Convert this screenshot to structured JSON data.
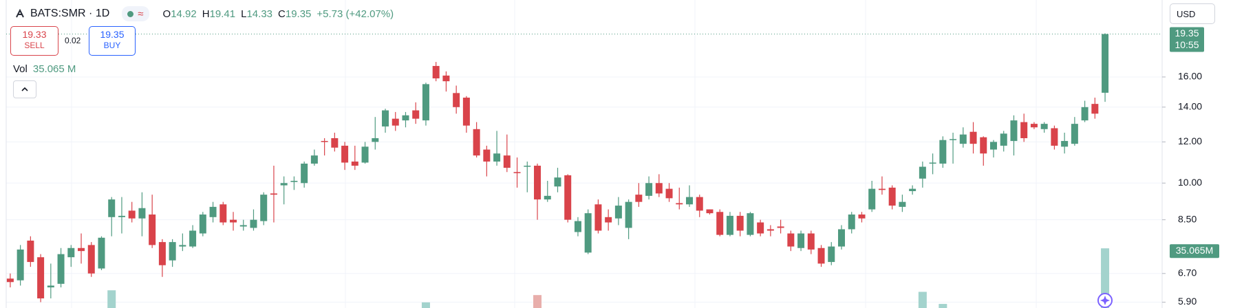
{
  "header": {
    "symbol": "BATS:SMR · 1D",
    "ohlc": [
      {
        "label": "O",
        "value": "14.92"
      },
      {
        "label": "H",
        "value": "19.41"
      },
      {
        "label": "L",
        "value": "14.33"
      },
      {
        "label": "C",
        "value": "19.35"
      }
    ],
    "change": "+5.73 (+42.07%)",
    "currency": "USD"
  },
  "trade": {
    "sell_price": "19.33",
    "sell": "SELL",
    "spread": "0.02",
    "buy_price": "19.35",
    "buy": "BUY"
  },
  "volume_legend": {
    "label": "Vol",
    "value": "35.065 M"
  },
  "chart_data": {
    "type": "candlestick",
    "open": [
      6.55,
      6.5,
      7.75,
      7.2,
      6.3,
      6.4,
      7.2,
      7.5,
      7.6,
      6.85,
      8.6,
      8.6,
      8.85,
      8.55,
      8.7,
      7.7,
      7.1,
      7.55,
      7.55,
      8.0,
      8.6,
      9.1,
      8.5,
      8.25,
      8.2,
      8.45,
      9.55,
      9.9,
      10.05,
      10.0,
      10.9,
      12.05,
      12.2,
      11.8,
      11.0,
      10.95,
      12.0,
      12.85,
      13.3,
      13.2,
      13.8,
      13.2,
      16.8,
      16.1,
      14.9,
      14.6,
      12.7,
      11.6,
      11.0,
      11.3,
      10.5,
      10.75,
      10.8,
      9.3,
      9.85,
      10.35,
      8.05,
      7.35,
      9.1,
      8.6,
      8.55,
      8.2,
      9.5,
      9.45,
      10.0,
      9.75,
      9.15,
      9.1,
      9.4,
      8.9,
      8.8,
      7.95,
      8.65,
      7.95,
      8.4,
      8.15,
      8.25,
      8.0,
      7.5,
      8.0,
      7.5,
      7.05,
      7.55,
      8.15,
      8.7,
      8.9,
      9.75,
      9.8,
      9.0,
      9.65,
      10.2,
      10.9,
      10.9,
      12.1,
      11.9,
      12.55,
      12.25,
      11.6,
      11.8,
      12.05,
      13.1,
      13.0,
      12.7,
      12.75,
      11.75,
      11.9,
      13.2,
      14.2,
      14.92
    ],
    "high": [
      6.7,
      7.6,
      7.9,
      7.3,
      7.0,
      7.5,
      7.6,
      8.0,
      7.7,
      7.9,
      9.4,
      9.4,
      9.2,
      9.6,
      9.5,
      7.8,
      7.8,
      8.0,
      8.3,
      8.8,
      9.2,
      9.2,
      8.8,
      8.5,
      8.9,
      9.6,
      10.8,
      10.3,
      10.3,
      11.0,
      11.6,
      12.2,
      12.5,
      12.0,
      11.8,
      12.0,
      13.4,
      13.9,
      13.7,
      13.7,
      14.3,
      15.6,
      17.1,
      16.4,
      15.4,
      14.7,
      13.1,
      11.8,
      12.6,
      12.4,
      11.2,
      11.0,
      10.9,
      10.1,
      10.7,
      10.4,
      8.6,
      8.9,
      9.3,
      8.9,
      9.4,
      9.3,
      10.0,
      10.3,
      10.4,
      10.0,
      9.8,
      9.9,
      9.5,
      8.9,
      8.9,
      8.8,
      8.8,
      8.8,
      8.5,
      8.3,
      8.5,
      8.1,
      8.1,
      8.1,
      7.6,
      7.7,
      8.3,
      8.8,
      8.8,
      10.1,
      10.3,
      9.9,
      9.5,
      9.9,
      11.0,
      11.4,
      12.3,
      12.5,
      12.8,
      13.1,
      12.3,
      12.1,
      12.6,
      13.5,
      13.6,
      13.1,
      13.1,
      12.9,
      12.5,
      13.4,
      14.4,
      14.6,
      19.41
    ],
    "low": [
      6.3,
      6.35,
      6.9,
      5.9,
      6.0,
      6.3,
      6.9,
      7.0,
      6.6,
      6.8,
      7.9,
      8.0,
      8.4,
      7.9,
      7.5,
      6.6,
      6.9,
      7.4,
      7.5,
      7.9,
      8.4,
      8.3,
      8.1,
      8.1,
      8.1,
      8.3,
      8.4,
      9.1,
      9.7,
      9.8,
      10.8,
      11.3,
      11.5,
      10.6,
      10.6,
      10.9,
      11.6,
      12.5,
      12.6,
      12.8,
      13.0,
      12.9,
      15.7,
      15.0,
      13.6,
      12.5,
      11.2,
      10.3,
      10.8,
      10.5,
      9.8,
      9.6,
      8.5,
      9.2,
      9.6,
      8.4,
      7.9,
      7.3,
      8.0,
      8.1,
      8.3,
      7.8,
      9.0,
      9.3,
      9.4,
      9.2,
      8.9,
      9.0,
      8.6,
      8.7,
      7.9,
      7.9,
      7.9,
      7.9,
      7.9,
      7.9,
      8.0,
      7.4,
      7.4,
      7.3,
      6.9,
      6.95,
      7.45,
      8.0,
      8.4,
      8.8,
      9.5,
      8.9,
      8.8,
      9.5,
      9.8,
      10.4,
      10.7,
      10.9,
      11.7,
      11.4,
      10.8,
      11.2,
      11.5,
      11.3,
      12.0,
      12.7,
      12.5,
      11.6,
      11.4,
      11.8,
      13.1,
      13.3,
      14.33
    ],
    "close": [
      6.45,
      7.45,
      7.05,
      6.0,
      6.35,
      7.3,
      7.5,
      7.4,
      6.7,
      7.85,
      9.3,
      8.65,
      8.55,
      8.95,
      7.6,
      6.95,
      7.7,
      7.6,
      8.1,
      8.7,
      9.0,
      8.4,
      8.4,
      8.3,
      8.5,
      9.5,
      9.5,
      10.0,
      10.1,
      10.9,
      11.3,
      12.0,
      11.7,
      10.95,
      10.8,
      11.75,
      12.2,
      13.8,
      12.9,
      13.5,
      13.3,
      15.5,
      15.9,
      15.7,
      14.0,
      12.9,
      11.3,
      11.0,
      11.4,
      10.7,
      10.45,
      10.8,
      9.3,
      9.45,
      10.25,
      8.5,
      8.45,
      8.75,
      8.1,
      8.4,
      9.05,
      9.2,
      9.2,
      10.0,
      9.55,
      9.35,
      9.1,
      9.4,
      8.85,
      8.75,
      7.95,
      8.65,
      8.1,
      8.75,
      8.0,
      8.1,
      8.2,
      7.55,
      8.0,
      7.45,
      7.0,
      7.55,
      8.15,
      8.7,
      8.55,
      9.75,
      9.7,
      9.05,
      9.2,
      9.75,
      10.75,
      10.95,
      12.1,
      12.15,
      12.4,
      11.9,
      11.4,
      12.0,
      12.45,
      13.2,
      12.2,
      12.8,
      13.0,
      11.8,
      12.05,
      13.0,
      14.0,
      13.6,
      19.35
    ],
    "up_color": "#4f9a80",
    "down_color": "#d9434a",
    "ylim": [
      5.75,
      22.5
    ],
    "log": true,
    "grid": true,
    "yticks": [
      {
        "value": 5.9,
        "label": "5.90"
      },
      {
        "value": 6.7,
        "label": "6.70"
      },
      {
        "value": 8.5,
        "label": "8.50"
      },
      {
        "value": 10,
        "label": "10.00"
      },
      {
        "value": 12,
        "label": "12.00"
      },
      {
        "value": 14,
        "label": "14.00"
      },
      {
        "value": 16,
        "label": "16.00"
      }
    ],
    "last_price_label": "19.35",
    "countdown": "10:55",
    "volume": {
      "values": [
        null,
        null,
        null,
        null,
        null,
        null,
        null,
        null,
        null,
        null,
        10.4,
        null,
        null,
        null,
        null,
        null,
        null,
        null,
        null,
        null,
        null,
        null,
        null,
        null,
        null,
        null,
        null,
        null,
        null,
        null,
        null,
        null,
        null,
        null,
        null,
        null,
        null,
        null,
        null,
        null,
        null,
        3.3,
        null,
        null,
        null,
        null,
        null,
        null,
        null,
        null,
        null,
        null,
        7.6,
        null,
        null,
        null,
        null,
        null,
        null,
        null,
        null,
        null,
        null,
        null,
        null,
        null,
        null,
        null,
        null,
        null,
        null,
        null,
        null,
        null,
        null,
        null,
        null,
        null,
        null,
        null,
        null,
        null,
        null,
        null,
        null,
        null,
        null,
        null,
        null,
        null,
        9.5,
        null,
        2.4,
        null,
        null,
        null,
        null,
        null,
        null,
        null,
        null,
        null,
        null,
        null,
        null,
        null,
        null,
        null,
        35.065
      ],
      "ylim": [
        0,
        80
      ],
      "up_color": "#a3d3cd",
      "down_color": "#e8aeab",
      "last_label": "35.065M"
    }
  }
}
